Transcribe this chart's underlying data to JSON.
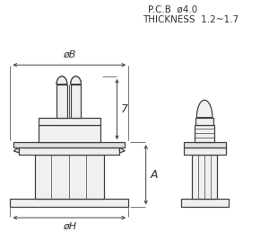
{
  "bg": "#ffffff",
  "lc": "#404040",
  "tc": "#303030",
  "title1": "P.C.B  ø4.0",
  "title2": "THICKNESS  1.2~1.7",
  "lB": "øB",
  "lA": "A",
  "lH": "øH",
  "l7": "7",
  "fig_w": 3.0,
  "fig_h": 2.58,
  "dpi": 100
}
